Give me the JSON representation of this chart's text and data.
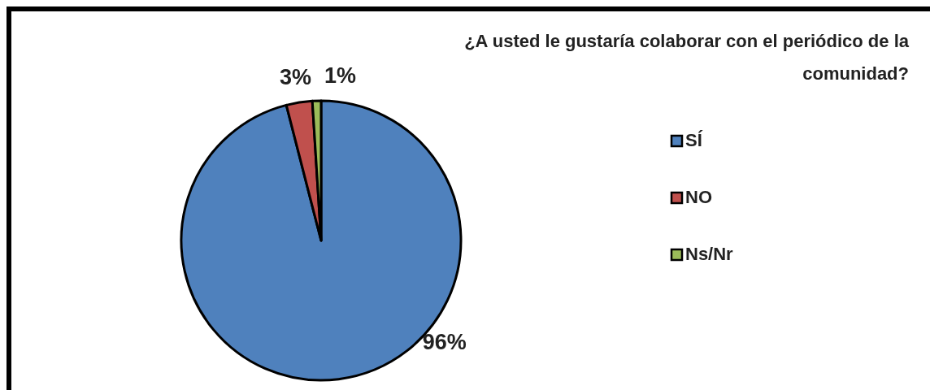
{
  "chart_data": {
    "type": "pie",
    "title": "¿A usted le gustaría colaborar con el periódico de la comunidad?",
    "categories": [
      "SÍ",
      "NO",
      "Ns/Nr"
    ],
    "values": [
      96,
      3,
      1
    ],
    "colors": [
      "#4f81bd",
      "#c0504d",
      "#9bbb59"
    ],
    "value_labels": [
      "96%",
      "3%",
      "1%"
    ],
    "legend": "right"
  }
}
